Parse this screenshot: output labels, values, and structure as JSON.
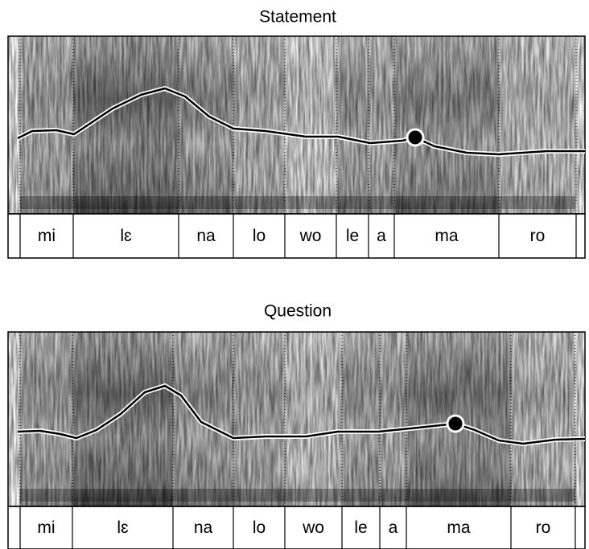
{
  "panels": [
    {
      "title": "Statement",
      "syllables": [
        "mi",
        "lɛ",
        "na",
        "lo",
        "wo",
        "le",
        "a",
        "ma",
        "ro"
      ]
    },
    {
      "title": "Question",
      "syllables": [
        "mi",
        "lɛ",
        "na",
        "lo",
        "wo",
        "le",
        "a",
        "ma",
        "ro"
      ]
    }
  ]
}
